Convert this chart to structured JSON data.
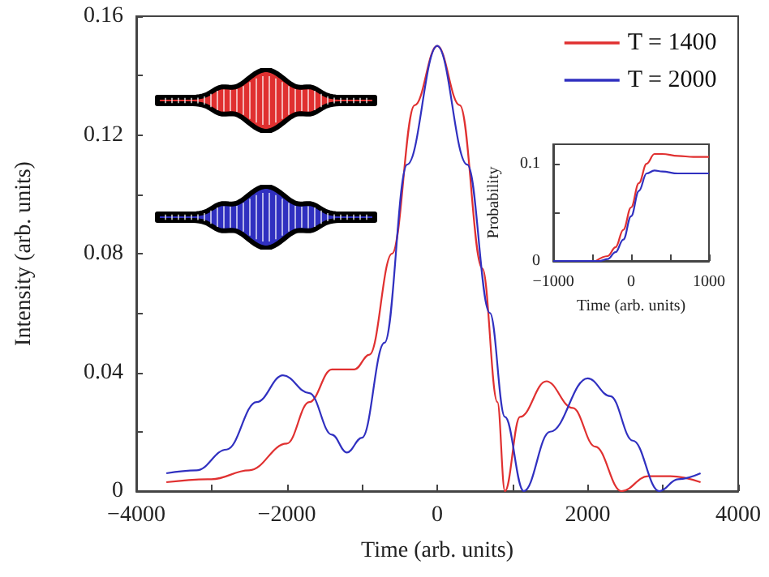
{
  "chart_data": [
    {
      "type": "line",
      "xlabel": "Time (arb. units)",
      "ylabel": "Intensity (arb. units)",
      "xlim": [
        -4000,
        4000
      ],
      "ylim": [
        0,
        0.16
      ],
      "xticks": [
        {
          "value": -4000,
          "label": "−4000"
        },
        {
          "value": -3000,
          "label": null
        },
        {
          "value": -2000,
          "label": "−2000"
        },
        {
          "value": -1000,
          "label": null
        },
        0,
        {
          "value": 1000,
          "label": null
        },
        2000,
        {
          "value": 3000,
          "label": null
        },
        4000
      ],
      "yticks": [
        0,
        {
          "value": 0.02,
          "label": null
        },
        0.04,
        {
          "value": 0.06,
          "label": null
        },
        0.08,
        {
          "value": 0.1,
          "label": null
        },
        0.12,
        {
          "value": 0.14,
          "label": null
        },
        0.16
      ],
      "legend": "top right",
      "grid": false,
      "marker": "none",
      "line_style": "solid",
      "series": [
        {
          "name": "T = 1400",
          "color": "#e03030",
          "x": [
            -3600,
            -3000,
            -2500,
            -2000,
            -1700,
            -1400,
            -1100,
            -900,
            -600,
            -300,
            0,
            300,
            600,
            800,
            900,
            1100,
            1450,
            1800,
            2100,
            2450,
            2800,
            3100,
            3500
          ],
          "values": [
            0.003,
            0.004,
            0.007,
            0.016,
            0.03,
            0.041,
            0.041,
            0.046,
            0.08,
            0.13,
            0.15,
            0.13,
            0.075,
            0.03,
            0,
            0.025,
            0.037,
            0.028,
            0.015,
            0,
            0.005,
            0.005,
            0.003
          ]
        },
        {
          "name": "T = 2000",
          "color": "#3030c0",
          "x": [
            -3600,
            -3200,
            -2800,
            -2400,
            -2050,
            -1700,
            -1400,
            -1200,
            -1000,
            -700,
            -400,
            0,
            400,
            700,
            900,
            1150,
            1500,
            2000,
            2300,
            2600,
            2950,
            3200,
            3500
          ],
          "values": [
            0.006,
            0.007,
            0.014,
            0.03,
            0.039,
            0.033,
            0.019,
            0.013,
            0.018,
            0.05,
            0.11,
            0.15,
            0.11,
            0.06,
            0.025,
            0,
            0.02,
            0.038,
            0.032,
            0.017,
            0,
            0.004,
            0.006
          ]
        }
      ]
    },
    {
      "type": "line",
      "xlabel": "Time (arb. units)",
      "ylabel": "Probability",
      "xlim": [
        -1000,
        1000
      ],
      "ylim": [
        0,
        0.12
      ],
      "xticks": [
        {
          "value": -1000,
          "label": "−1000"
        },
        {
          "value": -500,
          "label": null
        },
        0,
        {
          "value": 500,
          "label": null
        },
        1000
      ],
      "yticks": [
        0,
        {
          "value": 0.05,
          "label": null
        },
        0.1
      ],
      "legend": false,
      "grid": false,
      "marker": "none",
      "line_style": "solid",
      "series": [
        {
          "color": "#e03030",
          "x": [
            -450,
            -300,
            -200,
            -100,
            0,
            100,
            200,
            300,
            400,
            600,
            800,
            1000
          ],
          "values": [
            0,
            0.005,
            0.014,
            0.032,
            0.055,
            0.08,
            0.1,
            0.11,
            0.11,
            0.108,
            0.107,
            0.107
          ]
        },
        {
          "color": "#3030c0",
          "x": [
            -1000,
            -400,
            -300,
            -200,
            -100,
            0,
            100,
            200,
            300,
            400,
            600,
            800,
            1000
          ],
          "values": [
            0,
            0,
            0.002,
            0.009,
            0.022,
            0.046,
            0.072,
            0.09,
            0.093,
            0.092,
            0.09,
            0.09,
            0.09
          ]
        }
      ]
    }
  ]
}
